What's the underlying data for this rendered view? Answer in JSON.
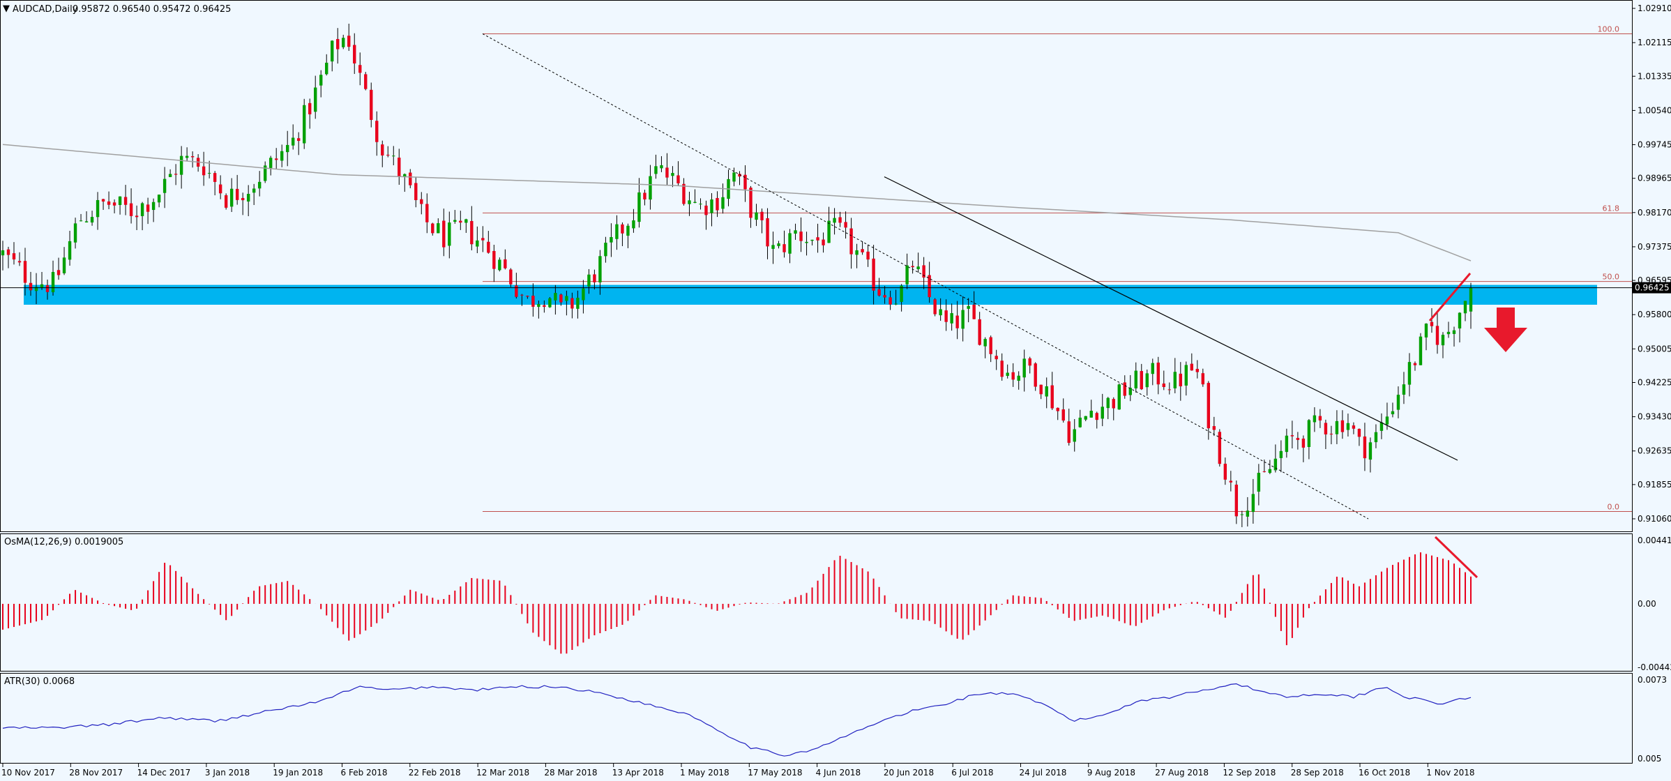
{
  "chart_data": [
    {
      "type": "candlestick",
      "header": {
        "symbol": "AUDCAD,Daily",
        "ohlc": "0.95872 0.96540 0.95472 0.96425",
        "open": 0.95872,
        "high": 0.9654,
        "low": 0.95472,
        "close": 0.96425
      },
      "y_ticks": [
        "1.02910",
        "1.02115",
        "1.01335",
        "1.00540",
        "0.99745",
        "0.98965",
        "0.98170",
        "0.97375",
        "0.96595",
        "0.95800",
        "0.95005",
        "0.94225",
        "0.93430",
        "0.92635",
        "0.91855",
        "0.91060"
      ],
      "ylim": [
        0.9106,
        1.0291
      ],
      "current_price_label": "0.96425",
      "x_ticks": [
        "10 Nov 2017",
        "28 Nov 2017",
        "14 Dec 2017",
        "3 Jan 2018",
        "19 Jan 2018",
        "6 Feb 2018",
        "22 Feb 2018",
        "12 Mar 2018",
        "28 Mar 2018",
        "13 Apr 2018",
        "1 May 2018",
        "17 May 2018",
        "4 Jun 2018",
        "20 Jun 2018",
        "6 Jul 2018",
        "24 Jul 2018",
        "9 Aug 2018",
        "27 Aug 2018",
        "12 Sep 2018",
        "28 Sep 2018",
        "16 Oct 2018",
        "1 Nov 2018"
      ],
      "close_path_anchors": [
        [
          0,
          0.972
        ],
        [
          8,
          0.966
        ],
        [
          15,
          0.965
        ],
        [
          22,
          0.98
        ],
        [
          30,
          0.984
        ],
        [
          38,
          0.982
        ],
        [
          45,
          0.986
        ],
        [
          52,
          0.994
        ],
        [
          58,
          0.993
        ],
        [
          65,
          0.985
        ],
        [
          72,
          0.988
        ],
        [
          78,
          0.993
        ],
        [
          84,
          0.998
        ],
        [
          90,
          1.008
        ],
        [
          96,
          1.02
        ],
        [
          100,
          1.023
        ],
        [
          104,
          1.012
        ],
        [
          110,
          0.997
        ],
        [
          116,
          0.99
        ],
        [
          122,
          0.98
        ],
        [
          128,
          0.976
        ],
        [
          134,
          0.978
        ],
        [
          140,
          0.974
        ],
        [
          146,
          0.968
        ],
        [
          152,
          0.961
        ],
        [
          158,
          0.963
        ],
        [
          162,
          0.959
        ],
        [
          166,
          0.961
        ],
        [
          172,
          0.968
        ],
        [
          178,
          0.976
        ],
        [
          184,
          0.983
        ],
        [
          190,
          0.992
        ],
        [
          196,
          0.988
        ],
        [
          202,
          0.983
        ],
        [
          208,
          0.985
        ],
        [
          212,
          0.991
        ],
        [
          218,
          0.981
        ],
        [
          224,
          0.972
        ],
        [
          230,
          0.977
        ],
        [
          236,
          0.975
        ],
        [
          242,
          0.978
        ],
        [
          248,
          0.972
        ],
        [
          254,
          0.964
        ],
        [
          260,
          0.962
        ],
        [
          264,
          0.97
        ],
        [
          268,
          0.963
        ],
        [
          274,
          0.955
        ],
        [
          280,
          0.958
        ],
        [
          286,
          0.951
        ],
        [
          292,
          0.944
        ],
        [
          298,
          0.946
        ],
        [
          304,
          0.939
        ],
        [
          310,
          0.93
        ],
        [
          316,
          0.936
        ],
        [
          322,
          0.938
        ],
        [
          328,
          0.942
        ],
        [
          334,
          0.944
        ],
        [
          340,
          0.942
        ],
        [
          346,
          0.946
        ],
        [
          350,
          0.934
        ],
        [
          354,
          0.924
        ],
        [
          358,
          0.913
        ],
        [
          362,
          0.916
        ],
        [
          366,
          0.92
        ],
        [
          370,
          0.925
        ],
        [
          374,
          0.929
        ],
        [
          378,
          0.93
        ],
        [
          382,
          0.933
        ],
        [
          386,
          0.932
        ],
        [
          390,
          0.934
        ],
        [
          394,
          0.927
        ],
        [
          398,
          0.929
        ],
        [
          402,
          0.935
        ],
        [
          406,
          0.942
        ],
        [
          410,
          0.948
        ],
        [
          414,
          0.955
        ],
        [
          418,
          0.952
        ],
        [
          422,
          0.958
        ],
        [
          426,
          0.964
        ]
      ],
      "candle_count": 264,
      "moving_average": {
        "color": "#a0a0a0",
        "anchors": [
          [
            0,
            0.9975
          ],
          [
            60,
            0.9905
          ],
          [
            120,
            0.988
          ],
          [
            180,
            0.983
          ],
          [
            220,
            0.98
          ],
          [
            250,
            0.977
          ],
          [
            264,
            0.97
          ]
        ]
      },
      "fibonacci": {
        "color": "#c0504d",
        "levels": [
          {
            "label": "100.0",
            "price": 1.0232
          },
          {
            "label": "61.8",
            "price": 0.9816
          },
          {
            "label": "50.0",
            "price": 0.9657
          },
          {
            "label": "0.0",
            "price": 0.9123
          }
        ]
      },
      "support_zone": {
        "low": 0.9603,
        "high": 0.9649,
        "color": "#00b4f0"
      },
      "annotations": {
        "down_arrow_color": "#e8192c",
        "divergence_line_color": "#e8192c"
      },
      "up_color": "#00a000",
      "down_color": "#e8001c",
      "wick_color": "#000000"
    },
    {
      "type": "histogram",
      "title": "OsMA(12,26,9) 0.0019005",
      "y_ticks": [
        "0.004414",
        "0.00",
        "-0.004420"
      ],
      "ylim": [
        -0.00442,
        0.004414
      ],
      "color": "#e8001c",
      "wave_anchors": [
        [
          0,
          -0.0018
        ],
        [
          8,
          -0.0011
        ],
        [
          14,
          0.001
        ],
        [
          20,
          0.0
        ],
        [
          26,
          -0.0005
        ],
        [
          32,
          0.003
        ],
        [
          38,
          0.0008
        ],
        [
          44,
          -0.0012
        ],
        [
          50,
          0.0012
        ],
        [
          56,
          0.0016
        ],
        [
          62,
          -0.0002
        ],
        [
          68,
          -0.0026
        ],
        [
          74,
          -0.0012
        ],
        [
          80,
          0.001
        ],
        [
          86,
          0.0002
        ],
        [
          92,
          0.0018
        ],
        [
          98,
          0.0016
        ],
        [
          104,
          -0.002
        ],
        [
          110,
          -0.0036
        ],
        [
          116,
          -0.0022
        ],
        [
          122,
          -0.0014
        ],
        [
          128,
          0.0006
        ],
        [
          134,
          0.0003
        ],
        [
          140,
          -0.0005
        ],
        [
          146,
          0.0001
        ],
        [
          152,
          0.0
        ],
        [
          158,
          0.0008
        ],
        [
          164,
          0.0034
        ],
        [
          170,
          0.0022
        ],
        [
          176,
          -0.001
        ],
        [
          182,
          -0.0012
        ],
        [
          188,
          -0.0026
        ],
        [
          192,
          -0.0014
        ],
        [
          198,
          0.0006
        ],
        [
          204,
          0.0004
        ],
        [
          210,
          -0.0012
        ],
        [
          216,
          -0.0008
        ],
        [
          222,
          -0.0016
        ],
        [
          228,
          -0.0004
        ],
        [
          234,
          0.0002
        ],
        [
          240,
          -0.001
        ],
        [
          246,
          0.0024
        ],
        [
          252,
          -0.003
        ],
        [
          256,
          -0.0004
        ],
        [
          262,
          0.002
        ],
        [
          266,
          0.0012
        ],
        [
          272,
          0.0026
        ],
        [
          278,
          0.0036
        ],
        [
          284,
          0.003
        ],
        [
          288,
          0.0019
        ]
      ],
      "annotation_line_color": "#e8192c"
    },
    {
      "type": "line",
      "title": "ATR(30) 0.0068",
      "y_ticks": [
        "0.0073",
        "0.005"
      ],
      "ylim": [
        0.005,
        0.0073
      ],
      "color": "#2020c0",
      "anchors": [
        [
          0,
          0.0059
        ],
        [
          10,
          0.0059
        ],
        [
          20,
          0.006
        ],
        [
          30,
          0.0062
        ],
        [
          40,
          0.0061
        ],
        [
          50,
          0.0064
        ],
        [
          60,
          0.0067
        ],
        [
          66,
          0.0071
        ],
        [
          72,
          0.007
        ],
        [
          80,
          0.0071
        ],
        [
          88,
          0.007
        ],
        [
          96,
          0.0071
        ],
        [
          104,
          0.0071
        ],
        [
          112,
          0.0069
        ],
        [
          120,
          0.0066
        ],
        [
          128,
          0.0063
        ],
        [
          134,
          0.0058
        ],
        [
          140,
          0.0053
        ],
        [
          146,
          0.0051
        ],
        [
          152,
          0.0053
        ],
        [
          158,
          0.0057
        ],
        [
          164,
          0.0061
        ],
        [
          170,
          0.0064
        ],
        [
          176,
          0.0066
        ],
        [
          182,
          0.0069
        ],
        [
          188,
          0.0069
        ],
        [
          194,
          0.0066
        ],
        [
          200,
          0.0061
        ],
        [
          206,
          0.0063
        ],
        [
          212,
          0.0067
        ],
        [
          218,
          0.0068
        ],
        [
          224,
          0.007
        ],
        [
          230,
          0.0072
        ],
        [
          234,
          0.007
        ],
        [
          240,
          0.0068
        ],
        [
          246,
          0.0069
        ],
        [
          252,
          0.0068
        ],
        [
          258,
          0.0071
        ],
        [
          262,
          0.0068
        ],
        [
          268,
          0.0066
        ],
        [
          274,
          0.0068
        ]
      ]
    }
  ]
}
